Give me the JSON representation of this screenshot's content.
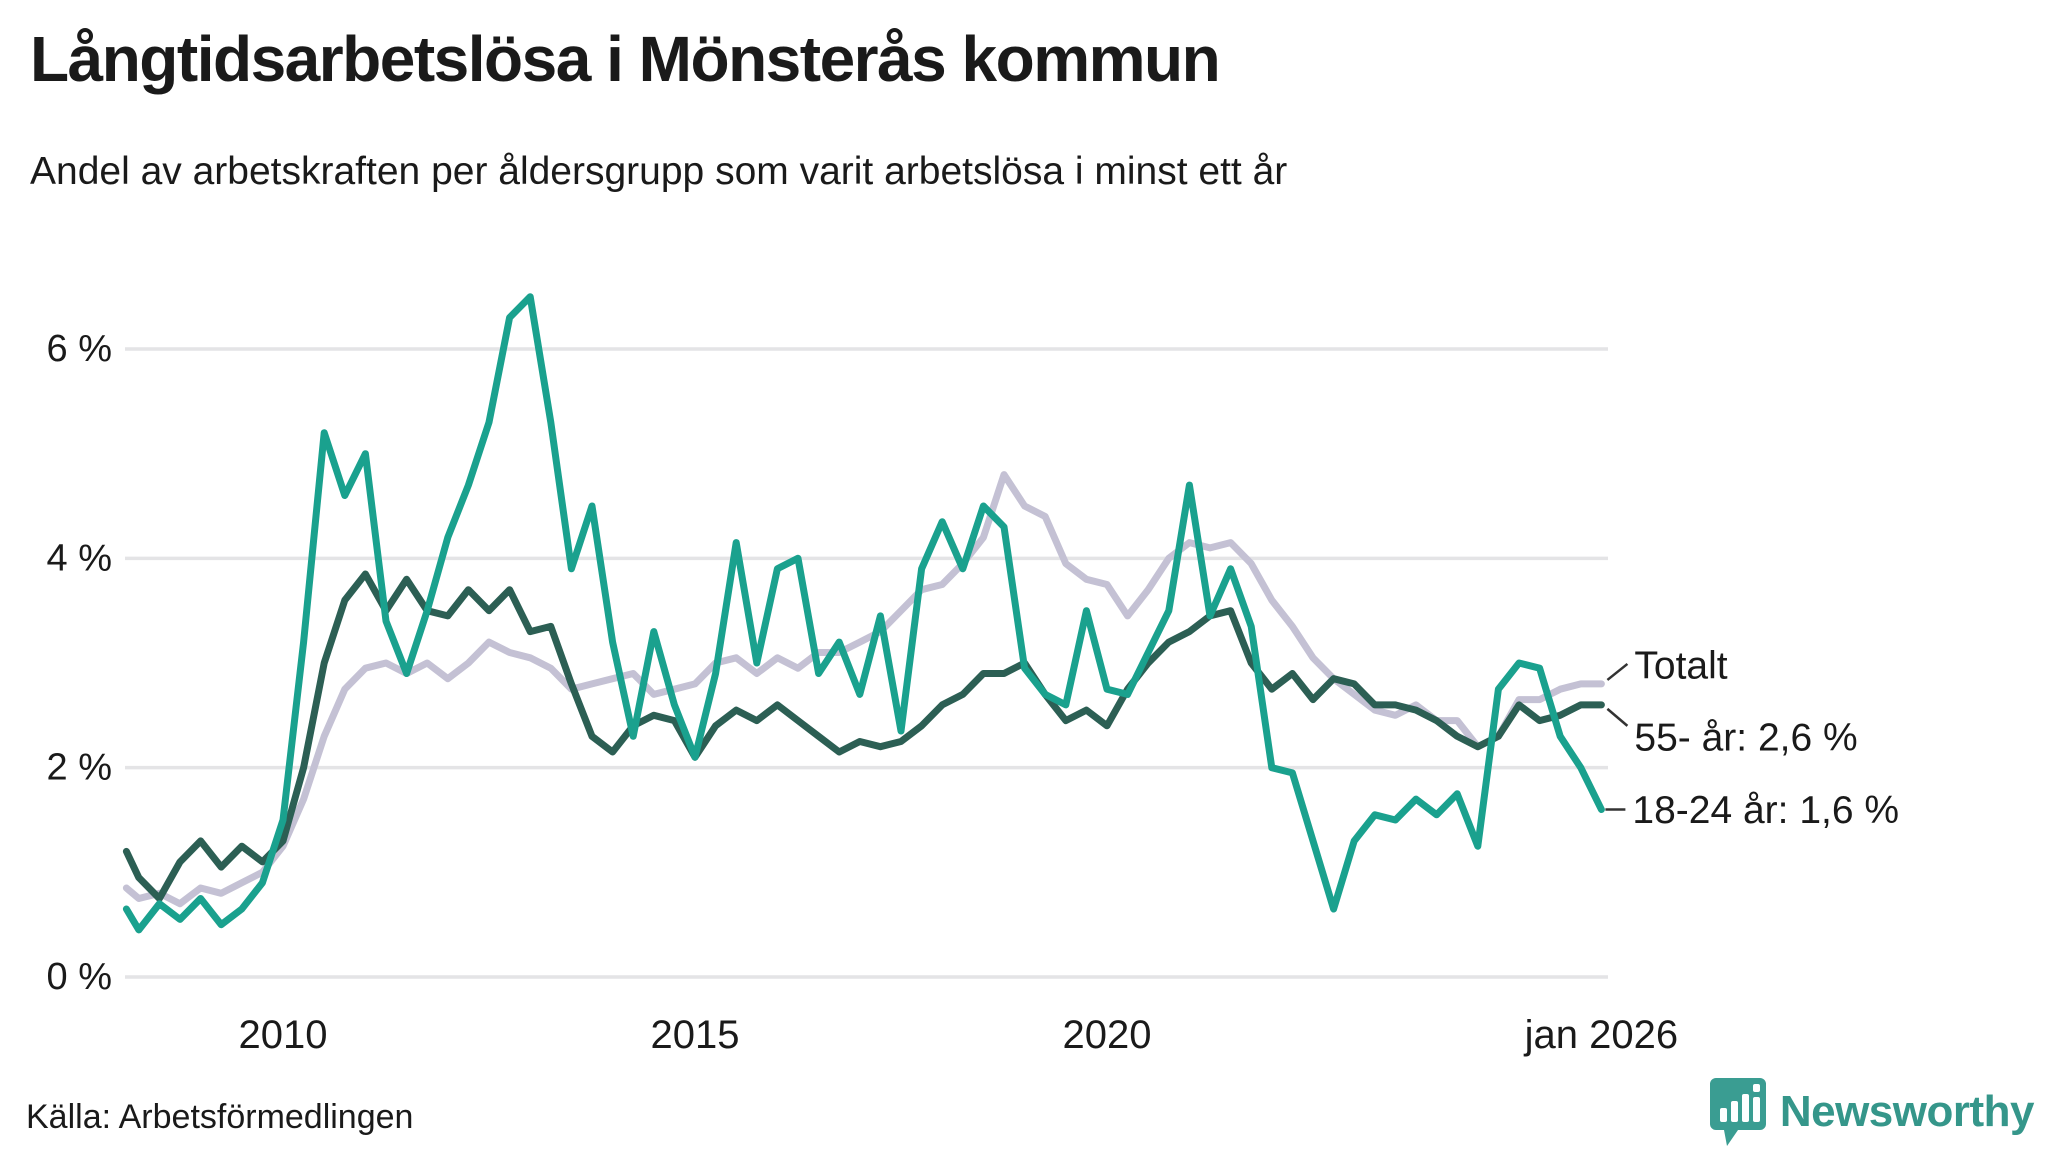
{
  "header": {
    "title": "Långtidsarbetslösa i Mönsterås kommun",
    "subtitle": "Andel av arbetskraften per åldersgrupp som varit arbetslösa i minst ett år"
  },
  "footer": {
    "source": "Källa: Arbetsförmedlingen",
    "brand": "Newsworthy"
  },
  "colors": {
    "total": "#c4c1d4",
    "age55": "#2c5f54",
    "age1824": "#1aa18e",
    "grid": "#e4e4e6",
    "text": "#1a1a1a",
    "connector": "#333333",
    "logo_marker": "#3a9d92",
    "logo_text": "#35968a"
  },
  "chart_data": {
    "type": "line",
    "title": "Långtidsarbetslösa i Mönsterås kommun",
    "xlabel": "",
    "ylabel": "",
    "grid": true,
    "legend_position": "end-labels",
    "ylim": [
      0,
      6.8
    ],
    "xlim": [
      2008.0,
      2026.3
    ],
    "x": [
      2008.1,
      2008.25,
      2008.5,
      2008.75,
      2009.0,
      2009.25,
      2009.5,
      2009.75,
      2010.0,
      2010.25,
      2010.5,
      2010.75,
      2011.0,
      2011.25,
      2011.5,
      2011.75,
      2012.0,
      2012.25,
      2012.5,
      2012.75,
      2013.0,
      2013.25,
      2013.5,
      2013.75,
      2014.0,
      2014.25,
      2014.5,
      2014.75,
      2015.0,
      2015.25,
      2015.5,
      2015.75,
      2016.0,
      2016.25,
      2016.5,
      2016.75,
      2017.0,
      2017.25,
      2017.5,
      2017.75,
      2018.0,
      2018.25,
      2018.5,
      2018.75,
      2019.0,
      2019.25,
      2019.5,
      2019.75,
      2020.0,
      2020.25,
      2020.5,
      2020.75,
      2021.0,
      2021.25,
      2021.5,
      2021.75,
      2022.0,
      2022.25,
      2022.5,
      2022.75,
      2023.0,
      2023.25,
      2023.5,
      2023.75,
      2024.0,
      2024.25,
      2024.5,
      2024.75,
      2025.0,
      2025.25,
      2025.5,
      2025.75,
      2026.0
    ],
    "yticks": [
      {
        "label": "6 %",
        "value": 6
      },
      {
        "label": "4 %",
        "value": 4
      },
      {
        "label": "2 %",
        "value": 2
      },
      {
        "label": "0 %",
        "value": 0
      }
    ],
    "xticks": [
      {
        "label": "2010",
        "value": 2010
      },
      {
        "label": "2015",
        "value": 2015
      },
      {
        "label": "2020",
        "value": 2020
      },
      {
        "label": "jan 2026",
        "value": 2026.0
      }
    ],
    "series": [
      {
        "name": "Totalt",
        "end_label": "Totalt",
        "color_key": "total",
        "values": [
          0.85,
          0.75,
          0.8,
          0.7,
          0.85,
          0.8,
          0.9,
          1.0,
          1.25,
          1.7,
          2.3,
          2.75,
          2.95,
          3.0,
          2.9,
          3.0,
          2.85,
          3.0,
          3.2,
          3.1,
          3.05,
          2.95,
          2.75,
          2.8,
          2.85,
          2.9,
          2.7,
          2.75,
          2.8,
          3.0,
          3.05,
          2.9,
          3.05,
          2.95,
          3.1,
          3.1,
          3.2,
          3.3,
          3.5,
          3.7,
          3.75,
          3.95,
          4.2,
          4.8,
          4.5,
          4.4,
          3.95,
          3.8,
          3.75,
          3.45,
          3.7,
          4.0,
          4.15,
          4.1,
          4.15,
          3.95,
          3.6,
          3.35,
          3.05,
          2.85,
          2.7,
          2.55,
          2.5,
          2.6,
          2.45,
          2.45,
          2.2,
          2.3,
          2.65,
          2.65,
          2.75,
          2.8,
          2.8
        ]
      },
      {
        "name": "55- år",
        "end_label": "55- år: 2,6 %",
        "color_key": "age55",
        "values": [
          1.2,
          0.95,
          0.75,
          1.1,
          1.3,
          1.05,
          1.25,
          1.1,
          1.3,
          2.0,
          3.0,
          3.6,
          3.85,
          3.5,
          3.8,
          3.5,
          3.45,
          3.7,
          3.5,
          3.7,
          3.3,
          3.35,
          2.8,
          2.3,
          2.15,
          2.4,
          2.5,
          2.45,
          2.1,
          2.4,
          2.55,
          2.45,
          2.6,
          2.45,
          2.3,
          2.15,
          2.25,
          2.2,
          2.25,
          2.4,
          2.6,
          2.7,
          2.9,
          2.9,
          3.0,
          2.7,
          2.45,
          2.55,
          2.4,
          2.75,
          3.0,
          3.2,
          3.3,
          3.45,
          3.5,
          3.0,
          2.75,
          2.9,
          2.65,
          2.85,
          2.8,
          2.6,
          2.6,
          2.55,
          2.45,
          2.3,
          2.2,
          2.3,
          2.6,
          2.45,
          2.5,
          2.6,
          2.6
        ]
      },
      {
        "name": "18-24 år",
        "end_label": "18-24 år: 1,6 %",
        "color_key": "age1824",
        "values": [
          0.65,
          0.45,
          0.7,
          0.55,
          0.75,
          0.5,
          0.65,
          0.9,
          1.5,
          3.2,
          5.2,
          4.6,
          5.0,
          3.4,
          2.9,
          3.5,
          4.2,
          4.7,
          5.3,
          6.3,
          6.5,
          5.3,
          3.9,
          4.5,
          3.2,
          2.3,
          3.3,
          2.6,
          2.1,
          2.9,
          4.15,
          3.0,
          3.9,
          4.0,
          2.9,
          3.2,
          2.7,
          3.45,
          2.35,
          3.9,
          4.35,
          3.9,
          4.5,
          4.3,
          2.95,
          2.7,
          2.6,
          3.5,
          2.75,
          2.7,
          3.1,
          3.5,
          4.7,
          3.45,
          3.9,
          3.35,
          2.0,
          1.95,
          1.3,
          0.65,
          1.3,
          1.55,
          1.5,
          1.7,
          1.55,
          1.75,
          1.25,
          2.75,
          3.0,
          2.95,
          2.3,
          2.0,
          1.6
        ]
      }
    ]
  }
}
